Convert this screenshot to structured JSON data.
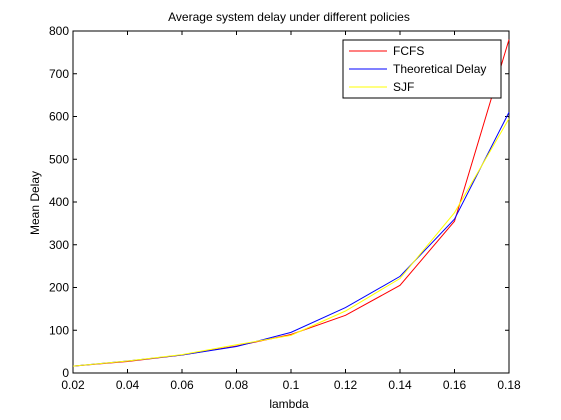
{
  "chart_data": {
    "type": "line",
    "title": "Average system delay under different policies",
    "xlabel": "lambda",
    "ylabel": "Mean Delay",
    "xlim": [
      0.02,
      0.18
    ],
    "ylim": [
      0,
      800
    ],
    "xticks": [
      0.02,
      0.04,
      0.06,
      0.08,
      0.1,
      0.12,
      0.14,
      0.16,
      0.18
    ],
    "xtick_labels": [
      "0.02",
      "0.04",
      "0.06",
      "0.08",
      "0.1",
      "0.12",
      "0.14",
      "0.16",
      "0.18"
    ],
    "yticks": [
      0,
      100,
      200,
      300,
      400,
      500,
      600,
      700,
      800
    ],
    "ytick_labels": [
      "0",
      "100",
      "200",
      "300",
      "400",
      "500",
      "600",
      "700",
      "800"
    ],
    "grid": false,
    "legend_position": "top-right",
    "x": [
      0.02,
      0.04,
      0.06,
      0.08,
      0.1,
      0.12,
      0.14,
      0.16,
      0.18
    ],
    "series": [
      {
        "name": "FCFS",
        "color": "#ff0000",
        "values": [
          16,
          27,
          42,
          63,
          90,
          135,
          205,
          355,
          780
        ]
      },
      {
        "name": "Theoretical Delay",
        "color": "#0000ff",
        "values": [
          16,
          28,
          42,
          62,
          95,
          153,
          226,
          360,
          610
        ]
      },
      {
        "name": "SJF",
        "color": "#ffff00",
        "values": [
          16,
          28,
          43,
          66,
          88,
          145,
          221,
          375,
          595
        ]
      }
    ]
  }
}
